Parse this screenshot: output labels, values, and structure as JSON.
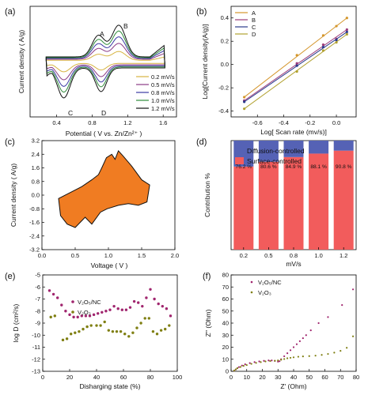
{
  "chart_data": [
    {
      "panel": "(a)",
      "type": "line",
      "xlabel": "Potential ( V vs. Zn/Zn²⁺ )",
      "ylabel": "Current density ( A/g)",
      "xlim": [
        0.1,
        1.75
      ],
      "xticks": [
        "0.4",
        "0.8",
        "1.2",
        "1.6"
      ],
      "peak_labels": [
        "A",
        "B",
        "C",
        "D"
      ],
      "series": [
        {
          "name": "0.2 mV/s",
          "color": "#d7b441",
          "scale": 0.28
        },
        {
          "name": "0.5 mV/s",
          "color": "#8b3a86",
          "scale": 0.5
        },
        {
          "name": "0.8 mV/s",
          "color": "#3a3aa3",
          "scale": 0.68
        },
        {
          "name": "1.0 mV/s",
          "color": "#2e8b3a",
          "scale": 0.84
        },
        {
          "name": "1.2 mV/s",
          "color": "#111111",
          "scale": 1.0
        }
      ]
    },
    {
      "panel": "(b)",
      "type": "scatter",
      "xlabel": "Log[ Scan rate (mv/s)]",
      "ylabel": "Log[Current density(A/g)]",
      "xlim": [
        -0.8,
        0.15
      ],
      "ylim": [
        -0.45,
        0.5
      ],
      "xticks": [
        "-0.6",
        "-0.4",
        "-0.2",
        "0.0"
      ],
      "yticks": [
        "-0.4",
        "-0.2",
        "0.0",
        "0.2",
        "0.4"
      ],
      "x": [
        -0.7,
        -0.3,
        -0.1,
        0.0,
        0.08
      ],
      "series": [
        {
          "name": "A",
          "color": "#d4962c",
          "values": [
            -0.28,
            0.08,
            0.25,
            0.33,
            0.4
          ]
        },
        {
          "name": "B",
          "color": "#9b3b7a",
          "values": [
            -0.31,
            0.01,
            0.17,
            0.22,
            0.3
          ]
        },
        {
          "name": "C",
          "color": "#2a3a8c",
          "values": [
            -0.32,
            -0.01,
            0.15,
            0.21,
            0.28
          ]
        },
        {
          "name": "D",
          "color": "#b1a12f",
          "values": [
            -0.38,
            -0.06,
            0.12,
            0.19,
            0.26
          ]
        }
      ]
    },
    {
      "panel": "(c)",
      "type": "area",
      "xlabel": "Voltage ( V )",
      "ylabel": "Current density  ( A/g)",
      "xlim": [
        0,
        2
      ],
      "ylim": [
        -3.2,
        3.2
      ],
      "xticks": [
        "0.0",
        "0.5",
        "1.0",
        "1.5",
        "2.0"
      ],
      "yticks": [
        "3.2",
        "2.4",
        "1.6",
        "0.8",
        "0.0",
        "-0.8",
        "-1.6",
        "-2.4",
        "-3.2"
      ],
      "fill_color": "#f07c22"
    },
    {
      "panel": "(d)",
      "type": "bar",
      "xlabel": "mV/s",
      "ylabel": "Contribution %",
      "ylim": [
        0,
        100
      ],
      "categories": [
        "0.2",
        "0.5",
        "0.8",
        "1.0",
        "1.2"
      ],
      "series": [
        {
          "name": "Surface-controlled",
          "color": "#f25c5c",
          "values": [
            76.2,
            80.6,
            84.9,
            88.1,
            90.8
          ]
        },
        {
          "name": "Diffusion-controlled",
          "color": "#5562b5",
          "values": [
            23.8,
            19.4,
            15.1,
            11.9,
            9.2
          ]
        }
      ],
      "data_labels": [
        "76.2 %",
        "80.6 %",
        "84.9 %",
        "88.1 %",
        "90.8 %"
      ]
    },
    {
      "panel": "(e)",
      "type": "scatter",
      "xlabel": "Disharging state (%)",
      "ylabel": "log D (cm²/s)",
      "xlim": [
        0,
        100
      ],
      "ylim": [
        -13,
        -5
      ],
      "xticks": [
        "0",
        "20",
        "40",
        "60",
        "80",
        "100"
      ],
      "yticks": [
        "-5",
        "-6",
        "-7",
        "-8",
        "-9",
        "-10",
        "-11",
        "-12",
        "-13"
      ],
      "series": [
        {
          "name": "V₂O₅/NC",
          "color": "#a0256e",
          "x": [
            5,
            8,
            11,
            14,
            17,
            20,
            23,
            26,
            29,
            32,
            35,
            38,
            41,
            44,
            47,
            50,
            53,
            56,
            59,
            62,
            65,
            68,
            71,
            74,
            77,
            80,
            83,
            86,
            89,
            92,
            95
          ],
          "values": [
            -6.3,
            -6.6,
            -6.9,
            -7.5,
            -8.0,
            -8.3,
            -8.5,
            -8.5,
            -8.4,
            -8.4,
            -8.4,
            -8.3,
            -8.2,
            -8.1,
            -8.0,
            -7.9,
            -7.6,
            -7.8,
            -7.9,
            -7.9,
            -7.7,
            -7.2,
            -7.3,
            -7.6,
            -6.9,
            -6.2,
            -7.0,
            -7.4,
            -7.6,
            -7.8,
            -8.4
          ]
        },
        {
          "name": "V₂O₃",
          "color": "#7f7f12",
          "x": [
            6,
            9,
            15,
            18,
            21,
            24,
            27,
            30,
            33,
            36,
            40,
            43,
            46,
            49,
            52,
            55,
            58,
            61,
            64,
            67,
            70,
            73,
            76,
            79,
            82,
            85,
            88,
            91,
            94
          ],
          "values": [
            -8.5,
            -8.4,
            -10.4,
            -10.3,
            -9.9,
            -9.8,
            -9.7,
            -9.5,
            -9.3,
            -9.2,
            -9.2,
            -9.2,
            -8.9,
            -9.6,
            -9.7,
            -9.7,
            -9.7,
            -9.9,
            -10.1,
            -9.8,
            -9.4,
            -9.0,
            -8.6,
            -8.6,
            -9.7,
            -9.9,
            -9.6,
            -9.5,
            -9.2
          ]
        }
      ]
    },
    {
      "panel": "(f)",
      "type": "scatter",
      "xlabel": "Z' (Ohm)",
      "ylabel": "Z'' (Ohm)",
      "xlim": [
        0,
        80
      ],
      "ylim": [
        0,
        80
      ],
      "xticks": [
        "0",
        "10",
        "20",
        "30",
        "40",
        "50",
        "60",
        "70",
        "80"
      ],
      "yticks": [
        "0",
        "10",
        "20",
        "30",
        "40",
        "50",
        "60",
        "70",
        "80"
      ],
      "series": [
        {
          "name": "V₂O₅/NC",
          "color": "#a0256e",
          "x": [
            2,
            3,
            4,
            5,
            7,
            9,
            12,
            15,
            18,
            21,
            24,
            26,
            28,
            30,
            31,
            32,
            34,
            36,
            38,
            40,
            42,
            44,
            46,
            48,
            51,
            56,
            62,
            71,
            78
          ],
          "values": [
            0.5,
            1.5,
            2.5,
            3.5,
            4.8,
            5.8,
            6.8,
            7.6,
            8.2,
            8.7,
            9.0,
            9.0,
            8.6,
            8.0,
            8.4,
            10.0,
            12.5,
            15.0,
            17.5,
            20.0,
            22.5,
            25.0,
            27.5,
            30.0,
            34.0,
            40.0,
            45.0,
            55.0,
            68.0
          ]
        },
        {
          "name": "V₂O₃",
          "color": "#7f7f12",
          "x": [
            2,
            3,
            4,
            6,
            8,
            10,
            13,
            16,
            19,
            22,
            25,
            28,
            30,
            32,
            34,
            36,
            38,
            40,
            43,
            46,
            50,
            54,
            58,
            62,
            66,
            70,
            74,
            78
          ],
          "values": [
            0.6,
            1.6,
            2.6,
            3.6,
            4.5,
            5.2,
            6.2,
            7.0,
            7.6,
            8.2,
            8.5,
            8.8,
            9.0,
            9.6,
            10.2,
            10.8,
            11.2,
            11.6,
            12.1,
            12.4,
            12.6,
            13.0,
            13.6,
            14.4,
            15.5,
            17.0,
            19.5,
            29.0
          ]
        }
      ]
    }
  ]
}
